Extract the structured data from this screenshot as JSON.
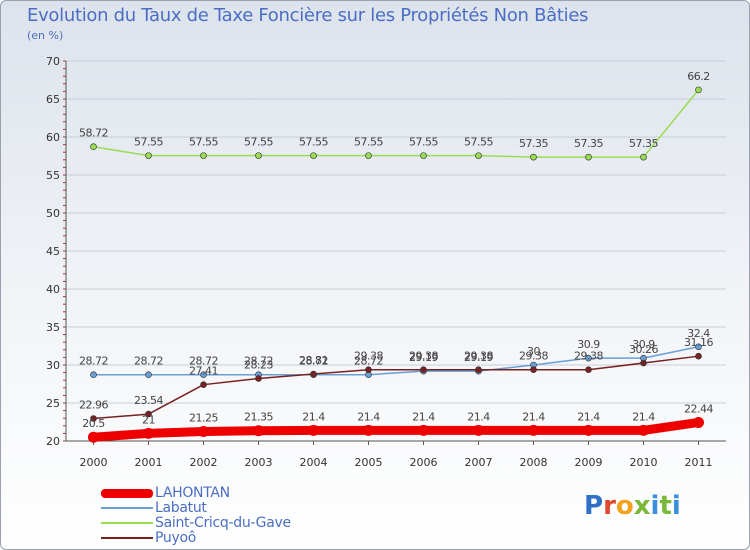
{
  "title": "Evolution du Taux de Taxe Foncière sur les Propriétés Non Bâties",
  "unit_label": "(en %)",
  "logo_text": "Proxiti",
  "chart_data": {
    "type": "line",
    "title": "Evolution du Taux de Taxe Foncière sur les Propriétés Non Bâties",
    "ylabel": "(en %)",
    "xlabel": "",
    "ylim": [
      20,
      70
    ],
    "yticks": [
      20,
      25,
      30,
      35,
      40,
      45,
      50,
      55,
      60,
      65,
      70
    ],
    "categories": [
      "2000",
      "2001",
      "2002",
      "2003",
      "2004",
      "2005",
      "2006",
      "2007",
      "2008",
      "2009",
      "2010",
      "2011"
    ],
    "series": [
      {
        "name": "LAHONTAN",
        "color": "#ee0000",
        "emphasis": true,
        "values": [
          20.5,
          21,
          21.25,
          21.35,
          21.4,
          21.4,
          21.4,
          21.4,
          21.4,
          21.4,
          21.4,
          22.44
        ],
        "labels": [
          "20.5",
          "21",
          "21.25",
          "21.35",
          "21.4",
          "21.4",
          "21.4",
          "21.4",
          "21.4",
          "21.4",
          "21.4",
          "22.44"
        ]
      },
      {
        "name": "Labatut",
        "color": "#6a9fd6",
        "values": [
          28.72,
          28.72,
          28.72,
          28.72,
          28.72,
          28.72,
          29.19,
          29.19,
          30,
          30.9,
          30.9,
          32.4
        ],
        "labels": [
          "28.72",
          "28.72",
          "28.72",
          "28.72",
          "28.72",
          "28.72",
          "29.19",
          "29.19",
          "30",
          "30.9",
          "30.9",
          "32.4"
        ]
      },
      {
        "name": "Saint-Cricq-du-Gave",
        "color": "#99dd55",
        "values": [
          58.72,
          57.55,
          57.55,
          57.55,
          57.55,
          57.55,
          57.55,
          57.55,
          57.35,
          57.35,
          57.35,
          66.2
        ],
        "labels": [
          "58.72",
          "57.55",
          "57.55",
          "57.55",
          "57.55",
          "57.55",
          "57.55",
          "57.55",
          "57.35",
          "57.35",
          "57.35",
          "66.2"
        ]
      },
      {
        "name": "Puyoô",
        "color": "#772222",
        "values": [
          22.96,
          23.54,
          27.41,
          28.23,
          28.81,
          29.38,
          29.38,
          29.38,
          29.38,
          29.38,
          30.26,
          31.16
        ],
        "labels": [
          "22.96",
          "23.54",
          "27.41",
          "28.23",
          "28.81",
          "29.38",
          "29.38",
          "29.38",
          "29.38",
          "29.38",
          "30.26",
          "31.16"
        ]
      }
    ],
    "legend_order": [
      "LAHONTAN",
      "Labatut",
      "Saint-Cricq-du-Gave",
      "Puyoô"
    ],
    "legend_position": "bottom-left"
  }
}
